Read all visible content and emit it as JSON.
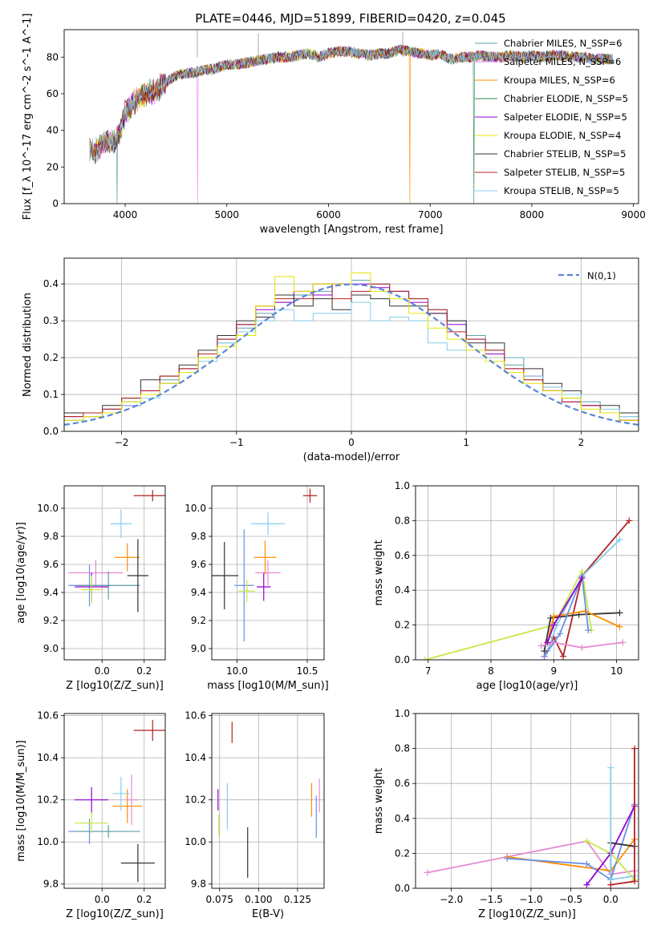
{
  "title": "PLATE=0446, MJD=51899, FIBERID=0420, z=0.045",
  "legend": [
    "Chabrier MILES, N_SSP=6",
    "Salpeter MILES, N_SSP=6",
    "Kroupa MILES, N_SSP=6",
    "Chabrier ELODIE, N_SSP=5",
    "Salpeter ELODIE, N_SSP=5",
    "Kroupa ELODIE, N_SSP=4",
    "Chabrier STELIB, N_SSP=5",
    "Salpeter STELIB, N_SSP=5",
    "Kroupa STELIB, N_SSP=5"
  ],
  "colors": [
    "#5f9ea0",
    "#ee82ee",
    "#ff8c00",
    "#2e8b57",
    "#9400d3",
    "#e5e500",
    "#333333",
    "#b22222",
    "#87ceeb"
  ],
  "chart_data": [
    {
      "type": "line",
      "id": "spectrum",
      "xlabel": "wavelength [Angstrom, rest frame]",
      "ylabel": "Flux [f_λ 10^-17 erg cm^-2 s^-1 A^-1]",
      "xlim": [
        3400,
        9050
      ],
      "ylim": [
        0,
        95
      ],
      "xticks": [
        4000,
        5000,
        6000,
        7000,
        8000,
        9000
      ],
      "yticks": [
        0,
        20,
        40,
        60,
        80
      ],
      "series_color": "#7fb5b5",
      "spectrum_outline": [
        [
          3650,
          30
        ],
        [
          3700,
          28
        ],
        [
          3800,
          34
        ],
        [
          3900,
          33
        ],
        [
          3950,
          40
        ],
        [
          4000,
          50
        ],
        [
          4100,
          56
        ],
        [
          4200,
          60
        ],
        [
          4300,
          62
        ],
        [
          4400,
          66
        ],
        [
          4500,
          70
        ],
        [
          4600,
          71
        ],
        [
          4700,
          72
        ],
        [
          4800,
          73
        ],
        [
          4900,
          74
        ],
        [
          5000,
          76
        ],
        [
          5100,
          76
        ],
        [
          5200,
          77
        ],
        [
          5300,
          78
        ],
        [
          5400,
          79
        ],
        [
          5500,
          80
        ],
        [
          5600,
          80
        ],
        [
          5700,
          81
        ],
        [
          5800,
          82
        ],
        [
          5900,
          80
        ],
        [
          6000,
          82
        ],
        [
          6100,
          83
        ],
        [
          6200,
          83
        ],
        [
          6300,
          82
        ],
        [
          6400,
          81
        ],
        [
          6500,
          82
        ],
        [
          6600,
          82
        ],
        [
          6700,
          84
        ],
        [
          6800,
          83
        ],
        [
          6900,
          82
        ],
        [
          7000,
          81
        ],
        [
          7100,
          82
        ],
        [
          7200,
          79
        ],
        [
          7300,
          80
        ],
        [
          7400,
          80
        ],
        [
          7500,
          81
        ],
        [
          7600,
          80
        ],
        [
          7700,
          80
        ],
        [
          7800,
          81
        ],
        [
          7900,
          80
        ],
        [
          8000,
          81
        ],
        [
          8100,
          80
        ],
        [
          8200,
          81
        ],
        [
          8300,
          81
        ],
        [
          8400,
          80
        ],
        [
          8500,
          80
        ],
        [
          8600,
          79
        ],
        [
          8700,
          79
        ],
        [
          8800,
          79
        ]
      ],
      "drops": [
        3920,
        4710,
        6800,
        7430
      ]
    },
    {
      "type": "line",
      "id": "residuals",
      "xlabel": "(data-model)/error",
      "ylabel": "Normed distribution",
      "xlim": [
        -2.5,
        2.5
      ],
      "ylim": [
        0,
        0.47
      ],
      "xticks": [
        -2,
        -1,
        0,
        1,
        2
      ],
      "yticks": [
        0.0,
        0.1,
        0.2,
        0.3,
        0.4
      ],
      "gaussian_label": "N(0,1)",
      "series": [
        {
          "name": "Chabrier MILES",
          "color": "#5f9ea0",
          "values": [
            0.03,
            0.04,
            0.06,
            0.08,
            0.1,
            0.14,
            0.16,
            0.2,
            0.24,
            0.28,
            0.32,
            0.35,
            0.37,
            0.38,
            0.4,
            0.41,
            0.4,
            0.38,
            0.36,
            0.33,
            0.3,
            0.26,
            0.22,
            0.18,
            0.14,
            0.12,
            0.09,
            0.07,
            0.05,
            0.04
          ]
        },
        {
          "name": "Salpeter ELODIE",
          "color": "#9400d3",
          "values": [
            0.04,
            0.04,
            0.06,
            0.07,
            0.11,
            0.13,
            0.17,
            0.21,
            0.25,
            0.29,
            0.33,
            0.35,
            0.38,
            0.37,
            0.4,
            0.4,
            0.39,
            0.38,
            0.35,
            0.32,
            0.29,
            0.25,
            0.21,
            0.17,
            0.15,
            0.11,
            0.08,
            0.07,
            0.05,
            0.03
          ]
        },
        {
          "name": "Chabrier STELIB",
          "color": "#333333",
          "values": [
            0.05,
            0.05,
            0.07,
            0.09,
            0.14,
            0.15,
            0.18,
            0.22,
            0.26,
            0.3,
            0.31,
            0.37,
            0.34,
            0.36,
            0.33,
            0.37,
            0.36,
            0.34,
            0.34,
            0.32,
            0.3,
            0.24,
            0.24,
            0.2,
            0.17,
            0.13,
            0.11,
            0.08,
            0.07,
            0.05
          ]
        },
        {
          "name": "Kroupa STELIB",
          "color": "#87ceeb",
          "values": [
            0.03,
            0.04,
            0.06,
            0.07,
            0.09,
            0.13,
            0.16,
            0.19,
            0.24,
            0.27,
            0.3,
            0.33,
            0.3,
            0.32,
            0.32,
            0.35,
            0.3,
            0.31,
            0.3,
            0.24,
            0.22,
            0.25,
            0.22,
            0.2,
            0.15,
            0.12,
            0.1,
            0.08,
            0.06,
            0.04
          ]
        },
        {
          "name": "Salpeter STELIB",
          "color": "#b22222",
          "values": [
            0.04,
            0.05,
            0.06,
            0.09,
            0.11,
            0.15,
            0.17,
            0.21,
            0.25,
            0.29,
            0.34,
            0.36,
            0.36,
            0.4,
            0.36,
            0.38,
            0.4,
            0.38,
            0.36,
            0.33,
            0.27,
            0.25,
            0.22,
            0.17,
            0.14,
            0.11,
            0.08,
            0.07,
            0.05,
            0.03
          ]
        },
        {
          "name": "Kroupa ELODIE",
          "color": "#e5e500",
          "values": [
            0.03,
            0.04,
            0.05,
            0.08,
            0.1,
            0.13,
            0.16,
            0.2,
            0.23,
            0.26,
            0.34,
            0.42,
            0.38,
            0.4,
            0.4,
            0.43,
            0.38,
            0.36,
            0.32,
            0.28,
            0.25,
            0.22,
            0.19,
            0.16,
            0.13,
            0.11,
            0.09,
            0.06,
            0.05,
            0.03
          ]
        }
      ]
    },
    {
      "type": "scatter",
      "id": "age-Z",
      "xlabel": "Z [log10(Z/Z_sun)]",
      "ylabel": "age [log10(age/yr)]",
      "xlim": [
        -0.18,
        0.3
      ],
      "ylim": [
        8.92,
        10.16
      ],
      "xticks": [
        0.0,
        0.2
      ],
      "yticks": [
        9.0,
        9.2,
        9.4,
        9.6,
        9.8,
        10.0
      ],
      "points": [
        {
          "x": -0.06,
          "y": 9.45,
          "xerr": 0.1,
          "yerr": 0.15,
          "color": "#6a8ee6"
        },
        {
          "x": -0.03,
          "y": 9.54,
          "xerr": 0.13,
          "yerr": 0.09,
          "color": "#e58ad2"
        },
        {
          "x": 0.03,
          "y": 9.45,
          "xerr": 0.15,
          "yerr": 0.1,
          "color": "#5f9ea0"
        },
        {
          "x": -0.05,
          "y": 9.44,
          "xerr": 0.08,
          "yerr": 0.1,
          "color": "#9400d3"
        },
        {
          "x": 0.12,
          "y": 9.65,
          "xerr": 0.06,
          "yerr": 0.1,
          "color": "#ff8c00"
        },
        {
          "x": 0.09,
          "y": 9.89,
          "xerr": 0.05,
          "yerr": 0.1,
          "color": "#87ceeb"
        },
        {
          "x": 0.17,
          "y": 9.52,
          "xerr": 0.05,
          "yerr": 0.26,
          "color": "#333333"
        },
        {
          "x": 0.24,
          "y": 10.09,
          "xerr": 0.09,
          "yerr": 0.04,
          "color": "#b22222"
        },
        {
          "x": -0.05,
          "y": 9.42,
          "xerr": 0.05,
          "yerr": 0.1,
          "color": "#c6e84a"
        }
      ]
    },
    {
      "type": "scatter",
      "id": "age-mass",
      "xlabel": "mass [log10(M/M_sun)]",
      "ylabel": "",
      "xlim": [
        9.82,
        10.62
      ],
      "ylim": [
        8.92,
        10.16
      ],
      "xticks": [
        10.0,
        10.5
      ],
      "yticks": [
        9.0,
        9.2,
        9.4,
        9.6,
        9.8,
        10.0
      ],
      "points": [
        {
          "x": 9.91,
          "y": 9.52,
          "xerr": 0.1,
          "yerr": 0.24,
          "color": "#333333"
        },
        {
          "x": 10.05,
          "y": 9.45,
          "xerr": 0.07,
          "yerr": 0.4,
          "color": "#6a8ee6"
        },
        {
          "x": 10.19,
          "y": 9.44,
          "xerr": 0.05,
          "yerr": 0.1,
          "color": "#9400d3"
        },
        {
          "x": 10.22,
          "y": 9.54,
          "xerr": 0.09,
          "yerr": 0.09,
          "color": "#e58ad2"
        },
        {
          "x": 10.2,
          "y": 9.65,
          "xerr": 0.08,
          "yerr": 0.12,
          "color": "#ff8c00"
        },
        {
          "x": 10.22,
          "y": 9.89,
          "xerr": 0.12,
          "yerr": 0.08,
          "color": "#87ceeb"
        },
        {
          "x": 10.07,
          "y": 9.41,
          "xerr": 0.06,
          "yerr": 0.08,
          "color": "#c6e84a"
        },
        {
          "x": 10.52,
          "y": 10.09,
          "xerr": 0.05,
          "yerr": 0.05,
          "color": "#b22222"
        }
      ]
    },
    {
      "type": "line",
      "id": "massweight-age",
      "xlabel": "age [log10(age/yr)]",
      "ylabel": "mass weight",
      "xlim": [
        6.8,
        10.35
      ],
      "ylim": [
        0,
        1.0
      ],
      "xticks": [
        7,
        8,
        9,
        10
      ],
      "yticks": [
        0.0,
        0.2,
        0.4,
        0.6,
        0.8,
        1.0
      ],
      "series": [
        {
          "name": "Kroupa ELODIE",
          "color": "#c6e84a",
          "x": [
            6.95,
            9.0,
            9.45,
            9.6
          ],
          "y": [
            0.0,
            0.2,
            0.51,
            0.17
          ]
        },
        {
          "name": "Salpeter STELIB",
          "color": "#b22222",
          "x": [
            8.85,
            9.0,
            9.15,
            9.45,
            10.2
          ],
          "y": [
            0.02,
            0.13,
            0.02,
            0.48,
            0.8
          ]
        },
        {
          "name": "Kroupa STELIB",
          "color": "#87ceeb",
          "x": [
            8.9,
            9.05,
            9.45,
            10.05
          ],
          "y": [
            0.05,
            0.2,
            0.48,
            0.69
          ]
        },
        {
          "name": "Chabrier STELIB",
          "color": "#333333",
          "x": [
            8.85,
            8.95,
            9.4,
            10.05
          ],
          "y": [
            0.05,
            0.24,
            0.26,
            0.27
          ]
        },
        {
          "name": "Salpeter MILES",
          "color": "#e58ad2",
          "x": [
            8.8,
            9.0,
            9.45,
            10.1
          ],
          "y": [
            0.08,
            0.1,
            0.07,
            0.1
          ]
        },
        {
          "name": "Kroupa MILES",
          "color": "#ff8c00",
          "x": [
            8.9,
            9.0,
            9.5,
            10.05
          ],
          "y": [
            0.1,
            0.25,
            0.28,
            0.19
          ]
        },
        {
          "name": "Chabrier MILES",
          "color": "#6a8ee6",
          "x": [
            8.85,
            9.1,
            9.45,
            9.55
          ],
          "y": [
            0.02,
            0.15,
            0.48,
            0.17
          ]
        },
        {
          "name": "Salpeter ELODIE",
          "color": "#9400d3",
          "x": [
            8.9,
            9.0,
            9.45
          ],
          "y": [
            0.1,
            0.2,
            0.47
          ]
        }
      ]
    },
    {
      "type": "scatter",
      "id": "mass-Z",
      "xlabel": "Z [log10(Z/Z_sun)]",
      "ylabel": "mass [log10(M/M_sun)]",
      "xlim": [
        -0.18,
        0.3
      ],
      "ylim": [
        9.78,
        10.61
      ],
      "xticks": [
        0.0,
        0.2
      ],
      "yticks": [
        9.8,
        10.0,
        10.2,
        10.4,
        10.6
      ],
      "points": [
        {
          "x": -0.06,
          "y": 10.05,
          "xerr": 0.1,
          "yerr": 0.06,
          "color": "#6a8ee6"
        },
        {
          "x": 0.03,
          "y": 10.05,
          "xerr": 0.15,
          "yerr": 0.03,
          "color": "#5f9ea0"
        },
        {
          "x": -0.05,
          "y": 10.2,
          "xerr": 0.08,
          "yerr": 0.06,
          "color": "#9400d3"
        },
        {
          "x": -0.05,
          "y": 10.09,
          "xerr": 0.08,
          "yerr": 0.05,
          "color": "#c6e84a"
        },
        {
          "x": 0.12,
          "y": 10.17,
          "xerr": 0.07,
          "yerr": 0.08,
          "color": "#ff8c00"
        },
        {
          "x": 0.09,
          "y": 10.23,
          "xerr": 0.04,
          "yerr": 0.08,
          "color": "#87ceeb"
        },
        {
          "x": 0.14,
          "y": 10.2,
          "xerr": 0.03,
          "yerr": 0.12,
          "color": "#e58ad2"
        },
        {
          "x": 0.17,
          "y": 9.9,
          "xerr": 0.08,
          "yerr": 0.09,
          "color": "#333333"
        },
        {
          "x": 0.24,
          "y": 10.53,
          "xerr": 0.09,
          "yerr": 0.05,
          "color": "#b22222"
        }
      ]
    },
    {
      "type": "scatter",
      "id": "mass-ebv",
      "xlabel": "E(B-V)",
      "ylabel": "",
      "xlim": [
        0.07,
        0.142
      ],
      "ylim": [
        9.78,
        10.61
      ],
      "xticks": [
        0.075,
        0.1,
        0.125
      ],
      "yticks": [
        9.8,
        10.0,
        10.2,
        10.4,
        10.6
      ],
      "points": [
        {
          "x": 0.074,
          "y": 10.2,
          "yerr": 0.05,
          "color": "#9400d3"
        },
        {
          "x": 0.0745,
          "y": 10.08,
          "yerr": 0.05,
          "color": "#c6e84a"
        },
        {
          "x": 0.08,
          "y": 10.17,
          "yerr": 0.11,
          "color": "#87ceeb"
        },
        {
          "x": 0.083,
          "y": 10.52,
          "yerr": 0.05,
          "color": "#b22222"
        },
        {
          "x": 0.093,
          "y": 9.95,
          "yerr": 0.12,
          "color": "#333333"
        },
        {
          "x": 0.134,
          "y": 10.2,
          "yerr": 0.08,
          "color": "#ff8c00"
        },
        {
          "x": 0.137,
          "y": 10.12,
          "yerr": 0.1,
          "color": "#6a8ee6"
        },
        {
          "x": 0.139,
          "y": 10.22,
          "yerr": 0.08,
          "color": "#e58ad2"
        }
      ]
    },
    {
      "type": "line",
      "id": "massweight-Z",
      "xlabel": "Z [log10(Z/Z_sun)]",
      "ylabel": "mass weight",
      "xlim": [
        -2.45,
        0.35
      ],
      "ylim": [
        0,
        1.0
      ],
      "xticks": [
        -2.0,
        -1.5,
        -1.0,
        -0.5,
        0.0
      ],
      "yticks": [
        0.0,
        0.2,
        0.4,
        0.6,
        0.8,
        1.0
      ],
      "series": [
        {
          "name": "Salpeter MILES",
          "color": "#e58ad2",
          "x": [
            -2.3,
            -0.3,
            0.0,
            0.3
          ],
          "y": [
            0.09,
            0.27,
            0.08,
            0.1
          ]
        },
        {
          "name": "Kroupa MILES",
          "color": "#ff8c00",
          "x": [
            -1.3,
            0.0,
            0.3
          ],
          "y": [
            0.18,
            0.1,
            0.28
          ]
        },
        {
          "name": "Chabrier MILES",
          "color": "#6a8ee6",
          "x": [
            -1.3,
            -0.3,
            0.0,
            0.3
          ],
          "y": [
            0.17,
            0.14,
            0.05,
            0.48
          ]
        },
        {
          "name": "Kroupa ELODIE",
          "color": "#c6e84a",
          "x": [
            -0.3,
            0.0,
            0.3
          ],
          "y": [
            0.27,
            0.2,
            0.05
          ]
        },
        {
          "name": "Salpeter ELODIE",
          "color": "#9400d3",
          "x": [
            -0.3,
            0.0,
            0.3
          ],
          "y": [
            0.02,
            0.2,
            0.47
          ]
        },
        {
          "name": "Chabrier STELIB",
          "color": "#333333",
          "x": [
            0.0,
            0.0,
            0.3
          ],
          "y": [
            0.05,
            0.26,
            0.24
          ]
        },
        {
          "name": "Kroupa STELIB",
          "color": "#87ceeb",
          "x": [
            0.0,
            0.0,
            0.3
          ],
          "y": [
            0.69,
            0.05,
            0.07
          ]
        },
        {
          "name": "Salpeter STELIB",
          "color": "#b22222",
          "x": [
            0.0,
            0.3,
            0.3
          ],
          "y": [
            0.02,
            0.04,
            0.8
          ]
        }
      ]
    }
  ]
}
